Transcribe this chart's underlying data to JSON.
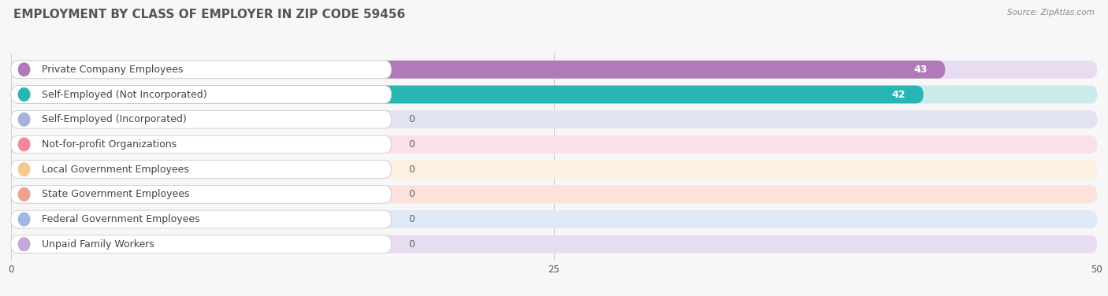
{
  "title": "EMPLOYMENT BY CLASS OF EMPLOYER IN ZIP CODE 59456",
  "source": "Source: ZipAtlas.com",
  "categories": [
    "Private Company Employees",
    "Self-Employed (Not Incorporated)",
    "Self-Employed (Incorporated)",
    "Not-for-profit Organizations",
    "Local Government Employees",
    "State Government Employees",
    "Federal Government Employees",
    "Unpaid Family Workers"
  ],
  "values": [
    43,
    42,
    0,
    0,
    0,
    0,
    0,
    0
  ],
  "bar_colors": [
    "#b07ab8",
    "#2ab5b5",
    "#aab0de",
    "#f08898",
    "#f5c890",
    "#f0a090",
    "#a0b8e8",
    "#c0a8d8"
  ],
  "bar_bg_colors": [
    "#e8ddf0",
    "#cceaea",
    "#e2e4f4",
    "#fce0e8",
    "#fef0de",
    "#fde2dc",
    "#deeaf8",
    "#e8ddf0"
  ],
  "row_bg_color": "#f0f0f0",
  "xlim": [
    0,
    50
  ],
  "xticks": [
    0,
    25,
    50
  ],
  "background_color": "#f7f7f7",
  "title_fontsize": 11,
  "label_fontsize": 9,
  "value_fontsize": 9
}
